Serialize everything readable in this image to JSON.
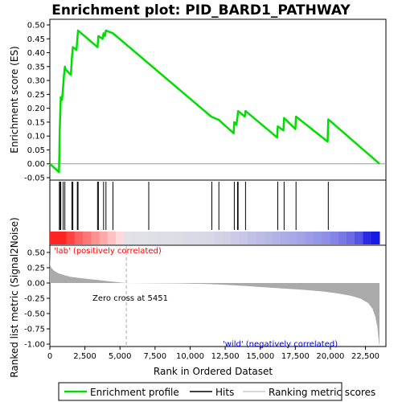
{
  "title": "Enrichment plot: PID_BARD1_PATHWAY",
  "chart_data": [
    {
      "type": "line",
      "panel": "enrichment-score",
      "ylabel": "Enrichment score (ES)",
      "ylim": [
        -0.05,
        0.5
      ],
      "yticks": [
        "0.50",
        "0.45",
        "0.40",
        "0.35",
        "0.30",
        "0.25",
        "0.20",
        "0.15",
        "0.10",
        "0.05",
        "0.00",
        "-0.05"
      ],
      "xlim": [
        0,
        23500
      ],
      "series": [
        {
          "name": "Enrichment profile",
          "color": "#00dd00",
          "x": [
            0,
            650,
            680,
            700,
            740,
            780,
            820,
            870,
            950,
            1010,
            1070,
            1120,
            1500,
            1570,
            1640,
            1900,
            1960,
            2010,
            3400,
            3460,
            3760,
            3830,
            3920,
            4000,
            4500,
            11500,
            11950,
            12000,
            13100,
            13150,
            13300,
            13380,
            13420,
            13900,
            13950,
            16200,
            16250,
            16650,
            16700,
            17500,
            17550,
            19800,
            19850,
            23500
          ],
          "y": [
            0.0,
            -0.03,
            0.04,
            0.11,
            0.18,
            0.24,
            0.24,
            0.23,
            0.28,
            0.32,
            0.35,
            0.34,
            0.32,
            0.38,
            0.42,
            0.41,
            0.45,
            0.48,
            0.42,
            0.46,
            0.45,
            0.47,
            0.46,
            0.48,
            0.47,
            0.17,
            0.16,
            0.16,
            0.11,
            0.15,
            0.14,
            0.17,
            0.19,
            0.17,
            0.19,
            0.095,
            0.135,
            0.12,
            0.165,
            0.125,
            0.17,
            0.08,
            0.16,
            0.0
          ]
        }
      ]
    },
    {
      "type": "hits",
      "panel": "hits",
      "xlim": [
        0,
        23500
      ],
      "series": [
        {
          "name": "Hits",
          "color": "#000000",
          "x": [
            680,
            740,
            780,
            950,
            1070,
            1570,
            1640,
            1960,
            2010,
            3400,
            3460,
            3830,
            4000,
            4500,
            7050,
            11550,
            12050,
            13150,
            13380,
            13420,
            13950,
            16250,
            16700,
            17550,
            19850
          ]
        }
      ]
    },
    {
      "type": "area",
      "panel": "ranked-list-metric",
      "ylabel": "Ranked list metric (Signal2Noise)",
      "xlabel": "Rank in Ordered Dataset",
      "ylim": [
        -1.1,
        0.62
      ],
      "yticks": [
        "0.50",
        "0.25",
        "0.00",
        "-0.25",
        "-0.50",
        "-0.75",
        "-1.00"
      ],
      "xticks": [
        "0",
        "2,500",
        "5,000",
        "7,500",
        "10,000",
        "12,500",
        "15,000",
        "17,500",
        "20,000",
        "22,500"
      ],
      "xtick_values": [
        0,
        2500,
        5000,
        7500,
        10000,
        12500,
        15000,
        17500,
        20000,
        22500
      ],
      "series": [
        {
          "name": "Ranking metric scores",
          "color": "#aaaaaa",
          "x": [
            0,
            30,
            100,
            300,
            600,
            1000,
            1500,
            2000,
            3000,
            4000,
            5000,
            5451,
            7000,
            9000,
            11000,
            12500,
            14000,
            16000,
            18000,
            19500,
            20500,
            21500,
            22200,
            22700,
            23000,
            23200,
            23350,
            23450,
            23500
          ],
          "y": [
            0.52,
            0.3,
            0.25,
            0.2,
            0.16,
            0.13,
            0.1,
            0.085,
            0.06,
            0.035,
            0.01,
            0.0,
            -0.003,
            -0.007,
            -0.015,
            -0.03,
            -0.05,
            -0.08,
            -0.11,
            -0.14,
            -0.17,
            -0.21,
            -0.26,
            -0.33,
            -0.42,
            -0.55,
            -0.72,
            -0.95,
            -1.05
          ]
        }
      ],
      "zero_cross": 5451
    }
  ],
  "annotations": {
    "zero_cross": "Zero cross at 5451",
    "positive": "'lab' (positively correlated)",
    "negative": "'wild' (negatively correlated)"
  },
  "colors": {
    "positive_label": "#ff0000",
    "negative_label": "#0000cc",
    "zero_line": "#aaaaaa"
  },
  "legend": {
    "placement": "bottom",
    "items": [
      "Enrichment profile",
      "Hits",
      "Ranking metric scores"
    ]
  }
}
